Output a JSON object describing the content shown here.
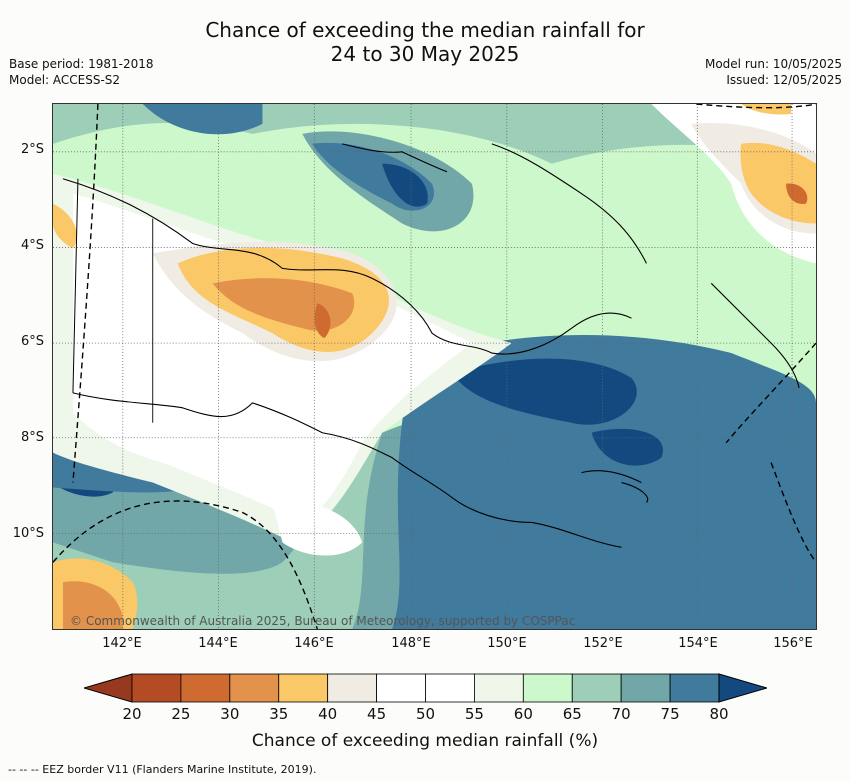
{
  "title_line1": "Chance of exceeding the median rainfall for",
  "title_line2": "24 to 30 May 2025",
  "base_period": "Base period: 1981-2018",
  "model": "Model: ACCESS-S2",
  "model_run": "Model run: 10/05/2025",
  "issued": "Issued: 12/05/2025",
  "lat_labels": [
    "2°S",
    "4°S",
    "6°S",
    "8°S",
    "10°S"
  ],
  "lon_labels": [
    "142°E",
    "144°E",
    "146°E",
    "148°E",
    "150°E",
    "152°E",
    "154°E",
    "156°E"
  ],
  "copyright": "© Commonwealth of Australia 2025, Bureau of Meteorology, supported by COSPPac",
  "colorbar": {
    "ticks": [
      "20",
      "25",
      "30",
      "35",
      "40",
      "45",
      "50",
      "55",
      "60",
      "65",
      "70",
      "75",
      "80"
    ],
    "label": "Chance of exceeding median rainfall (%)",
    "colors": [
      "#b34b25",
      "#cf6a30",
      "#e2924a",
      "#fbc868",
      "#f0ece4",
      "#ffffff",
      "#ffffff",
      "#eef7ea",
      "#cdf8cc",
      "#9dceb7",
      "#72a7a9",
      "#407a9c"
    ],
    "under_color": "#96391f",
    "over_color": "#124a80"
  },
  "footer": "--  --  -- EEZ border V11 (Flanders Marine Institute, 2019)."
}
